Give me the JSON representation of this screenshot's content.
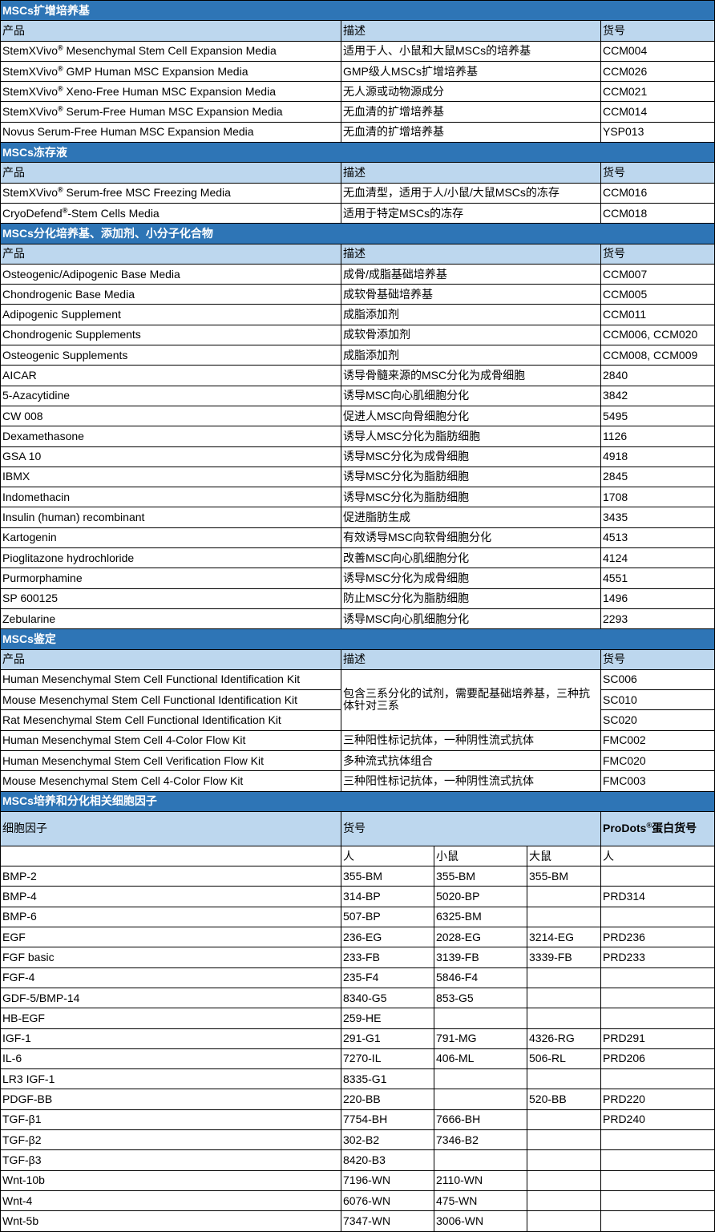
{
  "sections": [
    {
      "title": "MSCs扩增培养基",
      "headers": [
        "产品",
        "描述",
        "货号"
      ],
      "rows": [
        [
          "StemXVivo® Mesenchymal Stem Cell Expansion Media",
          "适用于人、小鼠和大鼠MSCs的培养基",
          "CCM004"
        ],
        [
          "StemXVivo® GMP Human MSC Expansion Media",
          "GMP级人MSCs扩增培养基",
          "CCM026"
        ],
        [
          "StemXVivo® Xeno-Free Human MSC Expansion Media",
          "无人源或动物源成分",
          "CCM021"
        ],
        [
          "StemXVivo® Serum-Free Human MSC Expansion Media",
          "无血清的扩增培养基",
          "CCM014"
        ],
        [
          "Novus Serum-Free Human MSC Expansion Media",
          "无血清的扩增培养基",
          "YSP013"
        ]
      ]
    },
    {
      "title": "MSCs冻存液",
      "headers": [
        "产品",
        "描述",
        "货号"
      ],
      "rows": [
        [
          "StemXVivo® Serum-free MSC Freezing Media",
          "无血清型，适用于人/小鼠/大鼠MSCs的冻存",
          "CCM016"
        ],
        [
          "CryoDefend®-Stem Cells Media",
          "适用于特定MSCs的冻存",
          "CCM018"
        ]
      ]
    },
    {
      "title": "MSCs分化培养基、添加剂、小分子化合物",
      "headers": [
        "产品",
        "描述",
        "货号"
      ],
      "rows": [
        [
          "Osteogenic/Adipogenic Base Media",
          "成骨/成脂基础培养基",
          "CCM007"
        ],
        [
          "Chondrogenic Base Media",
          "成软骨基础培养基",
          "CCM005"
        ],
        [
          "Adipogenic Supplement",
          "成脂添加剂",
          "CCM011"
        ],
        [
          "Chondrogenic Supplements",
          "成软骨添加剂",
          "CCM006, CCM020"
        ],
        [
          "Osteogenic Supplements",
          "成脂添加剂",
          "CCM008, CCM009"
        ],
        [
          "AICAR",
          "诱导骨髓来源的MSC分化为成骨细胞",
          "2840"
        ],
        [
          "5-Azacytidine",
          "诱导MSC向心肌细胞分化",
          "3842"
        ],
        [
          "CW 008",
          "促进人MSC向骨细胞分化",
          "5495"
        ],
        [
          "Dexamethasone",
          "诱导人MSC分化为脂肪细胞",
          "1126"
        ],
        [
          "GSA 10",
          "诱导MSC分化为成骨细胞",
          "4918"
        ],
        [
          "IBMX",
          "诱导MSC分化为脂肪细胞",
          "2845"
        ],
        [
          "Indomethacin",
          "诱导MSC分化为脂肪细胞",
          "1708"
        ],
        [
          "Insulin (human) recombinant",
          "促进脂肪生成",
          "3435"
        ],
        [
          "Kartogenin",
          "有效诱导MSC向软骨细胞分化",
          "4513"
        ],
        [
          "Pioglitazone hydrochloride",
          "改善MSC向心肌细胞分化",
          "4124"
        ],
        [
          "Purmorphamine",
          "诱导MSC分化为成骨细胞",
          "4551"
        ],
        [
          "SP 600125",
          "防止MSC分化为脂肪细胞",
          "1496"
        ],
        [
          "Zebularine",
          "诱导MSC向心肌细胞分化",
          "2293"
        ]
      ]
    },
    {
      "title": "MSCs鉴定",
      "headers": [
        "产品",
        "描述",
        "货号"
      ],
      "merged_description": "包含三系分化的试剂，需要配基础培养基，三种抗体针对三系",
      "merged_rows": [
        [
          "Human Mesenchymal Stem Cell Functional Identification Kit",
          "SC006"
        ],
        [
          "Mouse Mesenchymal Stem Cell Functional Identification Kit",
          "SC010"
        ],
        [
          "Rat Mesenchymal Stem Cell Functional Identification Kit",
          "SC020"
        ]
      ],
      "rows": [
        [
          "Human Mesenchymal Stem Cell 4-Color Flow Kit",
          "三种阳性标记抗体，一种阴性流式抗体",
          "FMC002"
        ],
        [
          "Human Mesenchymal Stem Cell Verification Flow Kit",
          "多种流式抗体组合",
          "FMC020"
        ],
        [
          "Mouse Mesenchymal Stem Cell 4-Color Flow Kit",
          "三种阳性标记抗体，一种阴性流式抗体",
          "FMC003"
        ]
      ]
    }
  ],
  "cytokines": {
    "title": "MSCs培养和分化相关细胞因子",
    "header_factor": "细胞因子",
    "header_catalog": "货号",
    "header_prodots": "ProDots®蛋白货号",
    "species": [
      "人",
      "小鼠",
      "大鼠",
      "人"
    ],
    "rows": [
      [
        "BMP-2",
        "355-BM",
        "355-BM",
        "355-BM",
        ""
      ],
      [
        "BMP-4",
        "314-BP",
        "5020-BP",
        "",
        "PRD314"
      ],
      [
        "BMP-6",
        "507-BP",
        "6325-BM",
        "",
        ""
      ],
      [
        "EGF",
        "236-EG",
        "2028-EG",
        "3214-EG",
        "PRD236"
      ],
      [
        "FGF basic",
        "233-FB",
        "3139-FB",
        "3339-FB",
        "PRD233"
      ],
      [
        "FGF-4",
        "235-F4",
        "5846-F4",
        "",
        ""
      ],
      [
        "GDF-5/BMP-14",
        "8340-G5",
        "853-G5",
        "",
        ""
      ],
      [
        "HB-EGF",
        "259-HE",
        "",
        "",
        ""
      ],
      [
        "IGF-1",
        "291-G1",
        "791-MG",
        "4326-RG",
        "PRD291"
      ],
      [
        "IL-6",
        "7270-IL",
        "406-ML",
        "506-RL",
        "PRD206"
      ],
      [
        "LR3 IGF-1",
        "8335-G1",
        "",
        "",
        ""
      ],
      [
        "PDGF-BB",
        "220-BB",
        "",
        "520-BB",
        "PRD220"
      ],
      [
        "TGF-β1",
        "7754-BH",
        "7666-BH",
        "",
        "PRD240"
      ],
      [
        "TGF-β2",
        "302-B2",
        "7346-B2",
        "",
        ""
      ],
      [
        "TGF-β3",
        "8420-B3",
        "",
        "",
        ""
      ],
      [
        "Wnt-10b",
        "7196-WN",
        "2110-WN",
        "",
        ""
      ],
      [
        "Wnt-4",
        "6076-WN",
        "475-WN",
        "",
        ""
      ],
      [
        "Wnt-5b",
        "7347-WN",
        "3006-WN",
        "",
        ""
      ]
    ]
  },
  "colors": {
    "section_header": "#2e75b6",
    "column_header": "#bdd7ee"
  }
}
